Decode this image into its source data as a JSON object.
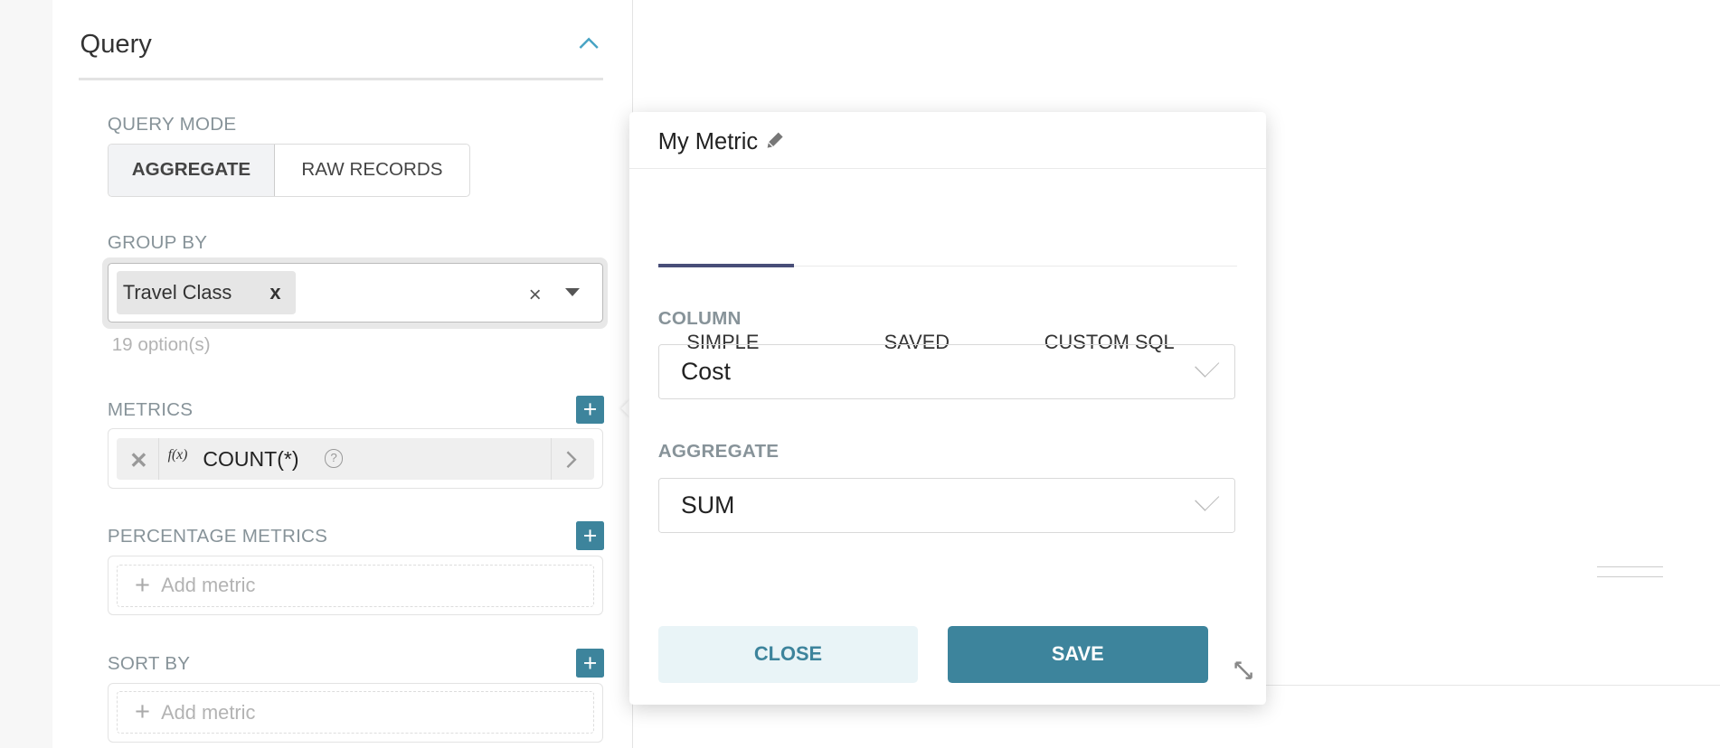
{
  "query_panel": {
    "title": "Query",
    "query_mode": {
      "label": "QUERY MODE",
      "options": [
        "AGGREGATE",
        "RAW RECORDS"
      ],
      "selected": "AGGREGATE"
    },
    "group_by": {
      "label": "GROUP BY",
      "tags": [
        "Travel Class"
      ],
      "tag_remove": "x",
      "clear": "×",
      "options_count": "19 option(s)"
    },
    "metrics": {
      "label": "METRICS",
      "items": [
        {
          "fx": "f(x)",
          "label": "COUNT(*)",
          "help": "?"
        }
      ]
    },
    "percentage_metrics": {
      "label": "PERCENTAGE METRICS",
      "placeholder": "Add metric"
    },
    "sort_by": {
      "label": "SORT BY",
      "placeholder": "Add metric"
    },
    "add_symbol": "+"
  },
  "metric_popover": {
    "title": "My Metric",
    "tabs": [
      "SIMPLE",
      "SAVED",
      "CUSTOM SQL"
    ],
    "active_tab": "SIMPLE",
    "column": {
      "label": "COLUMN",
      "value": "Cost"
    },
    "aggregate": {
      "label": "AGGREGATE",
      "value": "SUM"
    },
    "close_label": "CLOSE",
    "save_label": "SAVE"
  },
  "colors": {
    "accent": "#3d849c",
    "tab_active": "#484e78",
    "close_bg": "#e9f4f7"
  }
}
